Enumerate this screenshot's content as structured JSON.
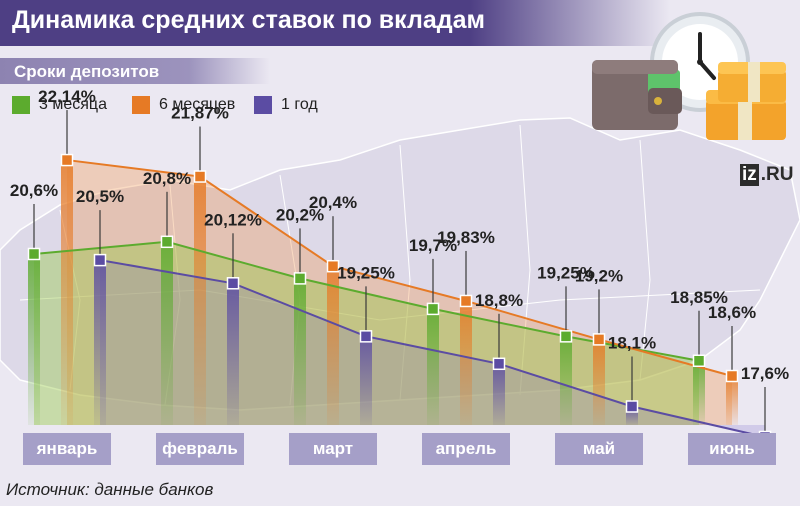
{
  "header": {
    "title": "Динамика средних ставок по вкладам",
    "subtitle": "Сроки депозитов"
  },
  "logo": {
    "mark": "iz",
    "suffix": ".RU"
  },
  "source": "Источник: данные банков",
  "colors": {
    "series_3m": "#5cab2e",
    "series_6m": "#e67a25",
    "series_1y": "#5b4ca3",
    "title_bg": "#4e3f84",
    "month_box": "#a59fc8"
  },
  "chart_data": {
    "type": "line",
    "title": "Динамика средних ставок по вкладам",
    "subtitle": "Сроки депозитов",
    "categories": [
      "январь",
      "февраль",
      "март",
      "апрель",
      "май",
      "июнь"
    ],
    "legend_position": "top-left",
    "grid": false,
    "series": [
      {
        "name": "3 месяца",
        "color": "#5cab2e",
        "values": [
          20.6,
          20.8,
          20.2,
          19.7,
          19.25,
          18.85
        ],
        "labels": [
          "20,6%",
          "20,8%",
          "20,2%",
          "19,7%",
          "19,25%",
          "18,85%"
        ]
      },
      {
        "name": "6 месяцев",
        "color": "#e67a25",
        "values": [
          22.14,
          21.87,
          20.4,
          19.83,
          19.2,
          18.6
        ],
        "labels": [
          "22,14%",
          "21,87%",
          "20,4%",
          "19,83%",
          "19,2%",
          "18,6%"
        ]
      },
      {
        "name": "1 год",
        "color": "#5b4ca3",
        "values": [
          20.5,
          20.12,
          19.25,
          18.8,
          18.1,
          17.6
        ],
        "labels": [
          "20,5%",
          "20,12%",
          "19,25%",
          "18,8%",
          "18,1%",
          "17,6%"
        ]
      }
    ]
  }
}
